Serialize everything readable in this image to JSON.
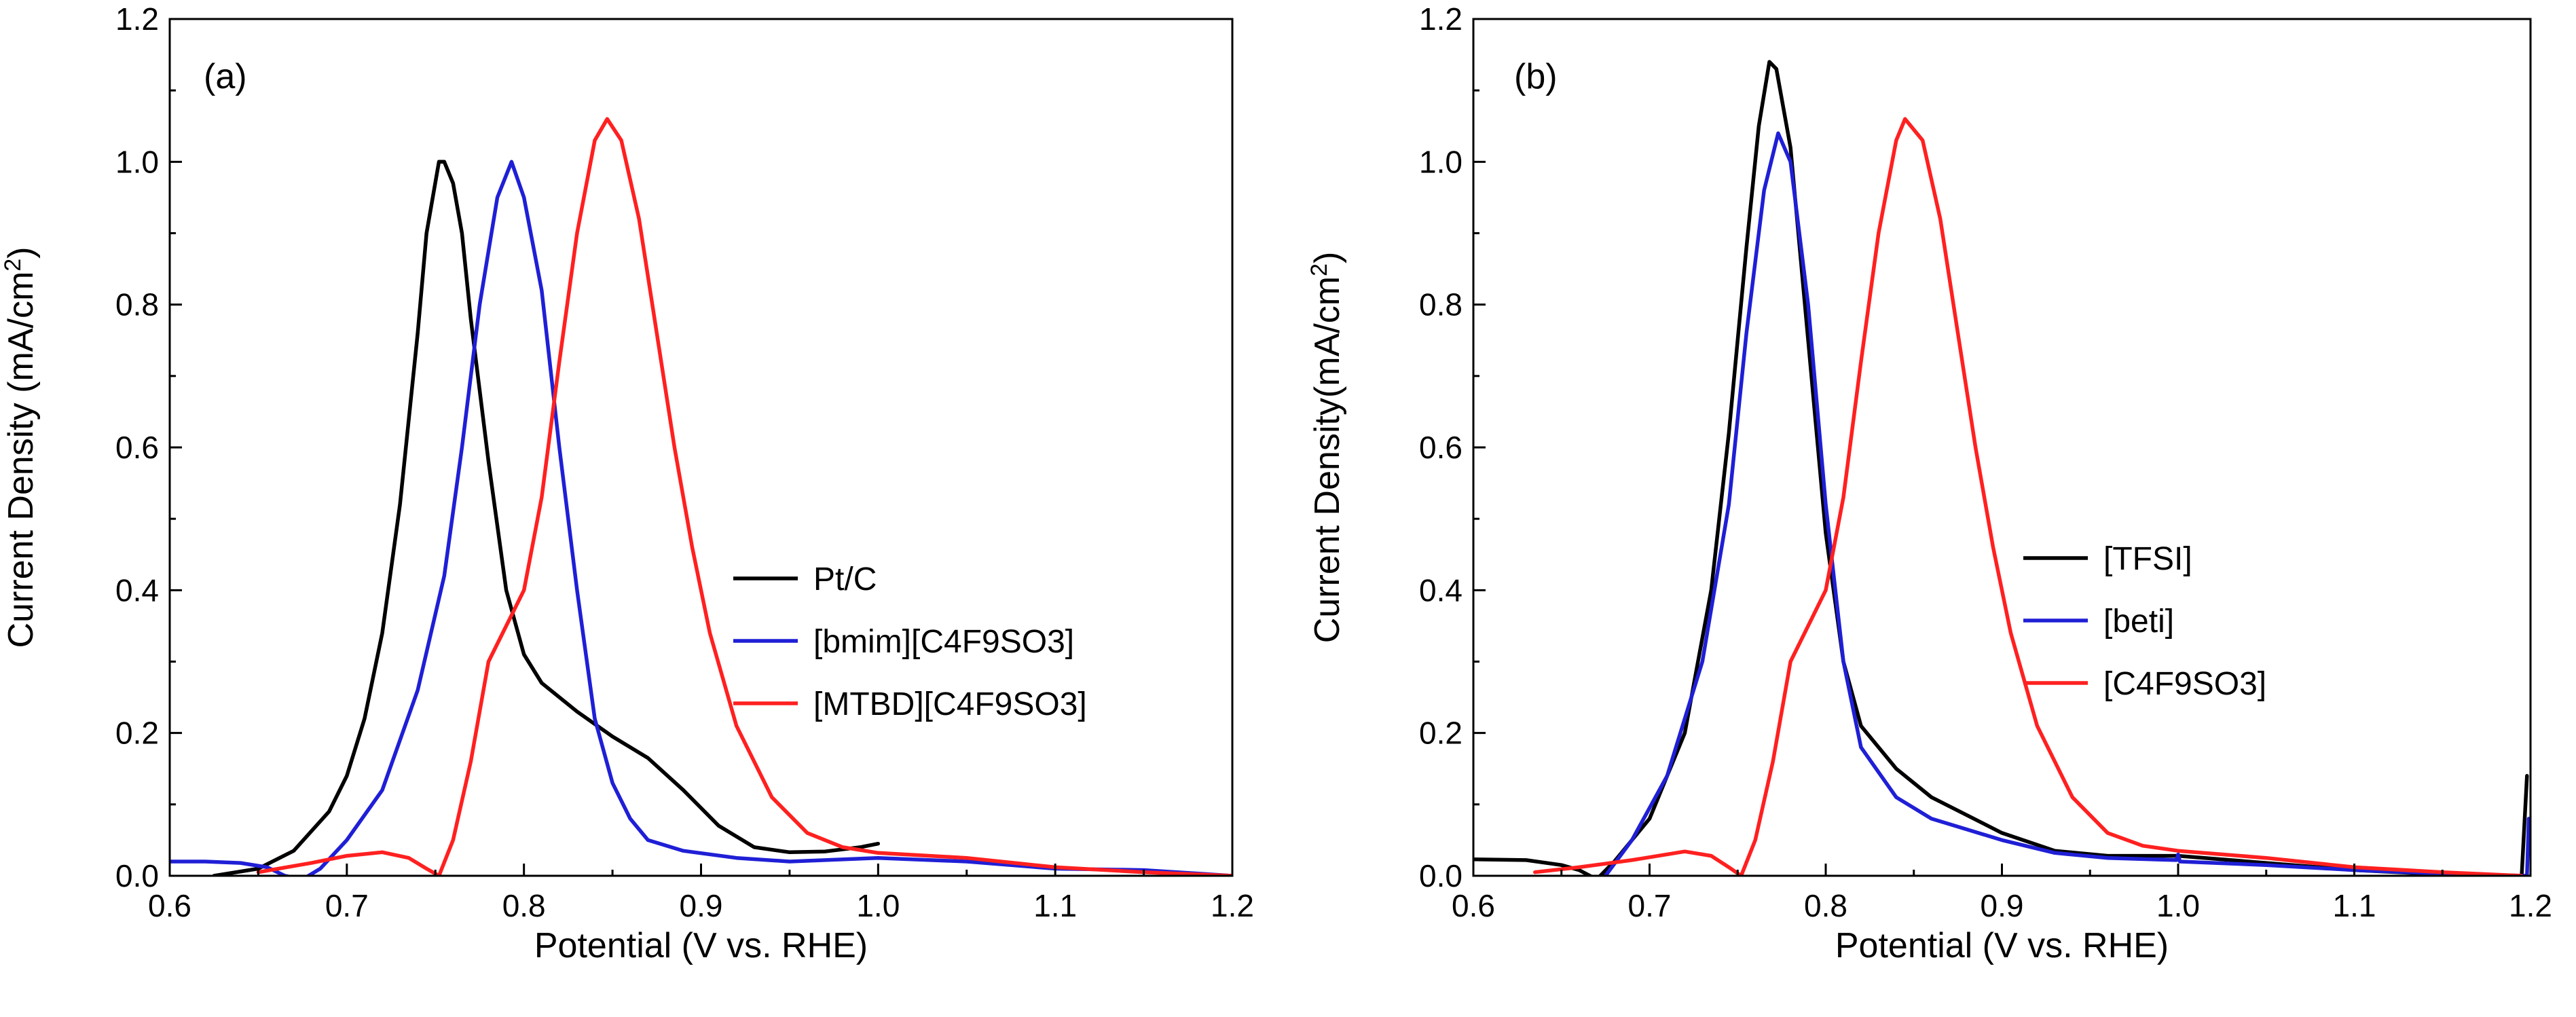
{
  "chart_data": [
    {
      "type": "line",
      "panel_label": "(a)",
      "xlabel": "Potential (V vs. RHE)",
      "ylabel_main": "Current Density (mA/cm",
      "ylabel_sup": "2",
      "ylabel_end": ")",
      "xlim": [
        0.6,
        1.2
      ],
      "ylim": [
        0.0,
        1.2
      ],
      "x_ticks": [
        0.6,
        0.7,
        0.8,
        0.9,
        1.0,
        1.1,
        1.2
      ],
      "x_tick_labels": [
        "0.6",
        "0.7",
        "0.8",
        "0.9",
        "1.0",
        "1.1",
        "1.2"
      ],
      "y_ticks": [
        0.0,
        0.2,
        0.4,
        0.6,
        0.8,
        1.0,
        1.2
      ],
      "y_tick_labels": [
        "0.0",
        "0.2",
        "0.4",
        "0.6",
        "0.8",
        "1.0",
        "1.2"
      ],
      "legend_position": "center-right",
      "series": [
        {
          "name": "Pt/C",
          "color": "#000000",
          "points": [
            [
              0.625,
              0.0
            ],
            [
              0.65,
              0.01
            ],
            [
              0.67,
              0.035
            ],
            [
              0.69,
              0.09
            ],
            [
              0.7,
              0.14
            ],
            [
              0.71,
              0.22
            ],
            [
              0.72,
              0.34
            ],
            [
              0.73,
              0.52
            ],
            [
              0.74,
              0.76
            ],
            [
              0.745,
              0.9
            ],
            [
              0.752,
              1.0
            ],
            [
              0.755,
              1.0
            ],
            [
              0.76,
              0.97
            ],
            [
              0.765,
              0.9
            ],
            [
              0.77,
              0.78
            ],
            [
              0.78,
              0.58
            ],
            [
              0.79,
              0.4
            ],
            [
              0.8,
              0.31
            ],
            [
              0.81,
              0.27
            ],
            [
              0.83,
              0.23
            ],
            [
              0.85,
              0.195
            ],
            [
              0.87,
              0.165
            ],
            [
              0.89,
              0.12
            ],
            [
              0.91,
              0.07
            ],
            [
              0.93,
              0.04
            ],
            [
              0.95,
              0.033
            ],
            [
              0.97,
              0.034
            ],
            [
              0.99,
              0.04
            ],
            [
              1.0,
              0.045
            ]
          ]
        },
        {
          "name": "[bmim][C4F9SO3]",
          "color": "#1f1fd6",
          "points": [
            [
              0.6,
              0.02
            ],
            [
              0.62,
              0.02
            ],
            [
              0.64,
              0.018
            ],
            [
              0.655,
              0.012
            ],
            [
              0.665,
              0.0
            ],
            [
              0.675,
              -0.005
            ],
            [
              0.685,
              0.01
            ],
            [
              0.7,
              0.05
            ],
            [
              0.72,
              0.12
            ],
            [
              0.74,
              0.26
            ],
            [
              0.755,
              0.42
            ],
            [
              0.765,
              0.6
            ],
            [
              0.775,
              0.8
            ],
            [
              0.785,
              0.95
            ],
            [
              0.793,
              1.0
            ],
            [
              0.8,
              0.95
            ],
            [
              0.81,
              0.82
            ],
            [
              0.82,
              0.6
            ],
            [
              0.83,
              0.4
            ],
            [
              0.84,
              0.22
            ],
            [
              0.85,
              0.13
            ],
            [
              0.86,
              0.08
            ],
            [
              0.87,
              0.05
            ],
            [
              0.89,
              0.035
            ],
            [
              0.92,
              0.025
            ],
            [
              0.95,
              0.02
            ],
            [
              1.0,
              0.025
            ],
            [
              1.05,
              0.02
            ],
            [
              1.1,
              0.01
            ],
            [
              1.15,
              0.008
            ],
            [
              1.2,
              0.0
            ]
          ]
        },
        {
          "name": "[MTBD][C4F9SO3]",
          "color": "#ff2020",
          "points": [
            [
              0.65,
              0.005
            ],
            [
              0.68,
              0.018
            ],
            [
              0.7,
              0.028
            ],
            [
              0.72,
              0.033
            ],
            [
              0.735,
              0.025
            ],
            [
              0.745,
              0.01
            ],
            [
              0.752,
              0.0
            ],
            [
              0.76,
              0.05
            ],
            [
              0.77,
              0.16
            ],
            [
              0.78,
              0.3
            ],
            [
              0.79,
              0.35
            ],
            [
              0.8,
              0.4
            ],
            [
              0.81,
              0.53
            ],
            [
              0.82,
              0.72
            ],
            [
              0.83,
              0.9
            ],
            [
              0.84,
              1.03
            ],
            [
              0.847,
              1.06
            ],
            [
              0.855,
              1.03
            ],
            [
              0.865,
              0.92
            ],
            [
              0.875,
              0.76
            ],
            [
              0.885,
              0.6
            ],
            [
              0.895,
              0.46
            ],
            [
              0.905,
              0.34
            ],
            [
              0.92,
              0.21
            ],
            [
              0.94,
              0.11
            ],
            [
              0.96,
              0.06
            ],
            [
              0.98,
              0.04
            ],
            [
              1.0,
              0.032
            ],
            [
              1.05,
              0.025
            ],
            [
              1.1,
              0.012
            ],
            [
              1.15,
              0.005
            ],
            [
              1.2,
              0.0
            ]
          ]
        }
      ]
    },
    {
      "type": "line",
      "panel_label": "(b)",
      "xlabel": "Potential (V vs. RHE)",
      "ylabel_main": "Current Density(mA/cm",
      "ylabel_sup": "2",
      "ylabel_end": ")",
      "xlim": [
        0.6,
        1.2
      ],
      "ylim": [
        0.0,
        1.2
      ],
      "x_ticks": [
        0.6,
        0.7,
        0.8,
        0.9,
        1.0,
        1.1,
        1.2
      ],
      "x_tick_labels": [
        "0.6",
        "0.7",
        "0.8",
        "0.9",
        "1.0",
        "1.1",
        "1.2"
      ],
      "y_ticks": [
        0.0,
        0.2,
        0.4,
        0.6,
        0.8,
        1.0,
        1.2
      ],
      "y_tick_labels": [
        "0.0",
        "0.2",
        "0.4",
        "0.6",
        "0.8",
        "1.0",
        "1.2"
      ],
      "legend_position": "center-right",
      "series": [
        {
          "name": "[TFSI]",
          "color": "#000000",
          "points": [
            [
              0.6,
              0.023
            ],
            [
              0.63,
              0.022
            ],
            [
              0.65,
              0.015
            ],
            [
              0.66,
              0.008
            ],
            [
              0.67,
              -0.005
            ],
            [
              0.68,
              0.02
            ],
            [
              0.7,
              0.08
            ],
            [
              0.72,
              0.2
            ],
            [
              0.735,
              0.4
            ],
            [
              0.745,
              0.62
            ],
            [
              0.755,
              0.88
            ],
            [
              0.762,
              1.05
            ],
            [
              0.768,
              1.14
            ],
            [
              0.772,
              1.13
            ],
            [
              0.78,
              1.02
            ],
            [
              0.79,
              0.75
            ],
            [
              0.8,
              0.48
            ],
            [
              0.81,
              0.3
            ],
            [
              0.82,
              0.21
            ],
            [
              0.84,
              0.15
            ],
            [
              0.86,
              0.11
            ],
            [
              0.88,
              0.085
            ],
            [
              0.9,
              0.06
            ],
            [
              0.93,
              0.035
            ],
            [
              0.96,
              0.028
            ],
            [
              1.0,
              0.028
            ],
            [
              1.05,
              0.018
            ],
            [
              1.1,
              0.008
            ],
            [
              1.15,
              0.002
            ],
            [
              1.195,
              0.0
            ],
            [
              1.198,
              0.14
            ]
          ]
        },
        {
          "name": "[beti]",
          "color": "#1f1fd6",
          "points": [
            [
              0.675,
              0.0
            ],
            [
              0.69,
              0.05
            ],
            [
              0.71,
              0.14
            ],
            [
              0.73,
              0.3
            ],
            [
              0.745,
              0.52
            ],
            [
              0.755,
              0.76
            ],
            [
              0.765,
              0.96
            ],
            [
              0.773,
              1.04
            ],
            [
              0.78,
              1.0
            ],
            [
              0.79,
              0.8
            ],
            [
              0.8,
              0.52
            ],
            [
              0.81,
              0.3
            ],
            [
              0.82,
              0.18
            ],
            [
              0.84,
              0.11
            ],
            [
              0.86,
              0.08
            ],
            [
              0.88,
              0.065
            ],
            [
              0.9,
              0.05
            ],
            [
              0.93,
              0.032
            ],
            [
              0.96,
              0.025
            ],
            [
              0.999,
              0.022
            ],
            [
              1.0,
              0.03
            ],
            [
              1.001,
              0.02
            ],
            [
              1.05,
              0.015
            ],
            [
              1.1,
              0.008
            ],
            [
              1.15,
              0.003
            ],
            [
              1.198,
              0.0
            ],
            [
              1.199,
              0.08
            ]
          ]
        },
        {
          "name": "[C4F9SO3]",
          "color": "#ff2020",
          "points": [
            [
              0.635,
              0.005
            ],
            [
              0.66,
              0.012
            ],
            [
              0.69,
              0.022
            ],
            [
              0.72,
              0.034
            ],
            [
              0.735,
              0.028
            ],
            [
              0.745,
              0.012
            ],
            [
              0.752,
              0.0
            ],
            [
              0.76,
              0.05
            ],
            [
              0.77,
              0.16
            ],
            [
              0.78,
              0.3
            ],
            [
              0.79,
              0.35
            ],
            [
              0.8,
              0.4
            ],
            [
              0.81,
              0.53
            ],
            [
              0.82,
              0.72
            ],
            [
              0.83,
              0.9
            ],
            [
              0.84,
              1.03
            ],
            [
              0.845,
              1.06
            ],
            [
              0.855,
              1.03
            ],
            [
              0.865,
              0.92
            ],
            [
              0.875,
              0.76
            ],
            [
              0.885,
              0.6
            ],
            [
              0.895,
              0.46
            ],
            [
              0.905,
              0.34
            ],
            [
              0.92,
              0.21
            ],
            [
              0.94,
              0.11
            ],
            [
              0.96,
              0.06
            ],
            [
              0.98,
              0.042
            ],
            [
              1.0,
              0.035
            ],
            [
              1.05,
              0.025
            ],
            [
              1.1,
              0.012
            ],
            [
              1.15,
              0.005
            ],
            [
              1.195,
              0.0
            ]
          ]
        }
      ]
    }
  ]
}
